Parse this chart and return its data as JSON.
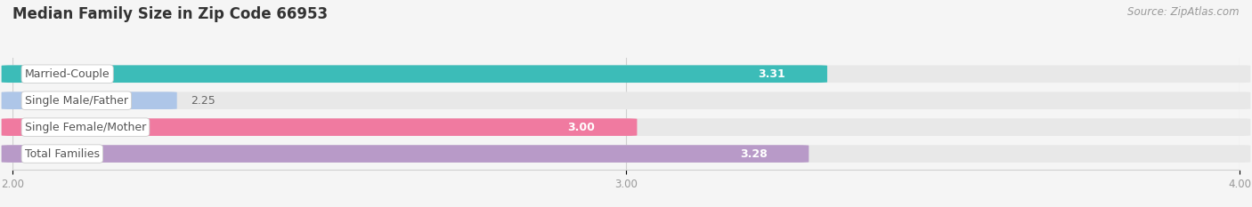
{
  "title": "Median Family Size in Zip Code 66953",
  "source": "Source: ZipAtlas.com",
  "categories": [
    "Married-Couple",
    "Single Male/Father",
    "Single Female/Mother",
    "Total Families"
  ],
  "values": [
    3.31,
    2.25,
    3.0,
    3.28
  ],
  "bar_colors": [
    "#3cbcb8",
    "#aec6e8",
    "#f07aA0",
    "#b89ac8"
  ],
  "value_text_colors": [
    "white",
    "#777777",
    "#777777",
    "white"
  ],
  "xlim": [
    2.0,
    4.0
  ],
  "xticks": [
    2.0,
    3.0,
    4.0
  ],
  "xtick_labels": [
    "2.00",
    "3.00",
    "4.00"
  ],
  "title_fontsize": 12,
  "label_fontsize": 9,
  "value_fontsize": 9,
  "source_fontsize": 8.5,
  "bg_color": "#f5f5f5",
  "track_color": "#e8e8e8",
  "grid_color": "#d0d0d0"
}
